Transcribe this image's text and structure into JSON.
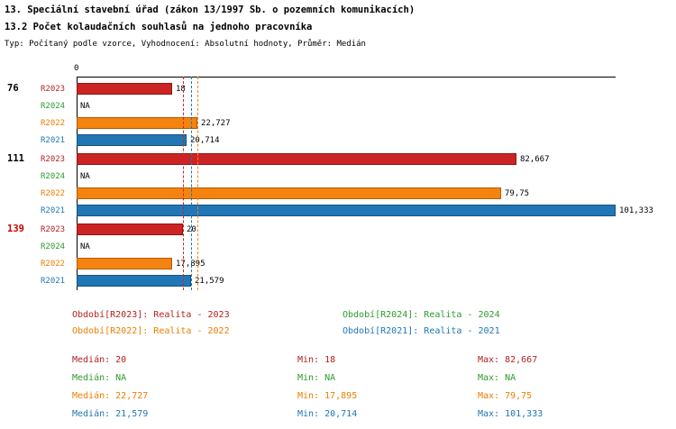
{
  "header": {
    "line1": "13. Speciální stavební úřad (zákon 13/1997 Sb. o pozemních komunikacích)",
    "line2": "13.2 Počet kolaudačních souhlasů na jednoho pracovníka",
    "meta": "Typ: Počítaný podle vzorce, Vyhodnocení: Absolutní hodnoty, Průměr: Medián"
  },
  "colors": {
    "r2023": "#b22222",
    "r2024": "#2e9b2e",
    "r2022": "#ef7d00",
    "r2021": "#1f77b4",
    "group_label_highlight": "#cc0000",
    "axis": "#000000"
  },
  "chart_data": {
    "type": "bar",
    "orientation": "horizontal",
    "x_axis": {
      "zero_label": "0",
      "min": 0,
      "max": 101.333
    },
    "series": [
      {
        "id": "R2023",
        "name": "Realita - 2023",
        "bar_color": "#cc2424",
        "border_color": "#8e1717",
        "text_color": "#b22222"
      },
      {
        "id": "R2024",
        "name": "Realita - 2024",
        "bar_color": "#2e9b2e",
        "border_color": "#1d6b1d",
        "text_color": "#2e9b2e"
      },
      {
        "id": "R2022",
        "name": "Realita - 2022",
        "bar_color": "#f5830f",
        "border_color": "#b35c00",
        "text_color": "#ef7d00"
      },
      {
        "id": "R2021",
        "name": "Realita - 2021",
        "bar_color": "#2176b5",
        "border_color": "#14537e",
        "text_color": "#1f77b4"
      }
    ],
    "groups": [
      {
        "label": "76",
        "label_color": "#000000",
        "values": [
          18,
          null,
          22.727,
          20.714
        ],
        "value_labels": [
          "18",
          "NA",
          "22,727",
          "20,714"
        ]
      },
      {
        "label": "111",
        "label_color": "#000000",
        "values": [
          82.667,
          null,
          79.75,
          101.333
        ],
        "value_labels": [
          "82,667",
          "NA",
          "79,75",
          "101,333"
        ]
      },
      {
        "label": "139",
        "label_color": "#cc0000",
        "values": [
          20,
          null,
          17.895,
          21.579
        ],
        "value_labels": [
          "20",
          "NA",
          "17,895",
          "21,579"
        ]
      }
    ],
    "median_lines": [
      {
        "series": "R2023",
        "value": 20
      },
      {
        "series": "R2022",
        "value": 22.727
      },
      {
        "series": "R2021",
        "value": 21.579
      }
    ]
  },
  "legend": [
    {
      "label": "Období[R2023]: Realita - 2023"
    },
    {
      "label": "Období[R2024]: Realita - 2024"
    },
    {
      "label": "Období[R2022]: Realita - 2022"
    },
    {
      "label": "Období[R2021]: Realita - 2021"
    }
  ],
  "stats": [
    {
      "median": "Medián: 20",
      "min": "Min: 18",
      "max": "Max: 82,667"
    },
    {
      "median": "Medián: NA",
      "min": "Min: NA",
      "max": "Max: NA"
    },
    {
      "median": "Medián: 22,727",
      "min": "Min: 17,895",
      "max": "Max: 79,75"
    },
    {
      "median": "Medián: 21,579",
      "min": "Min: 20,714",
      "max": "Max: 101,333"
    }
  ]
}
